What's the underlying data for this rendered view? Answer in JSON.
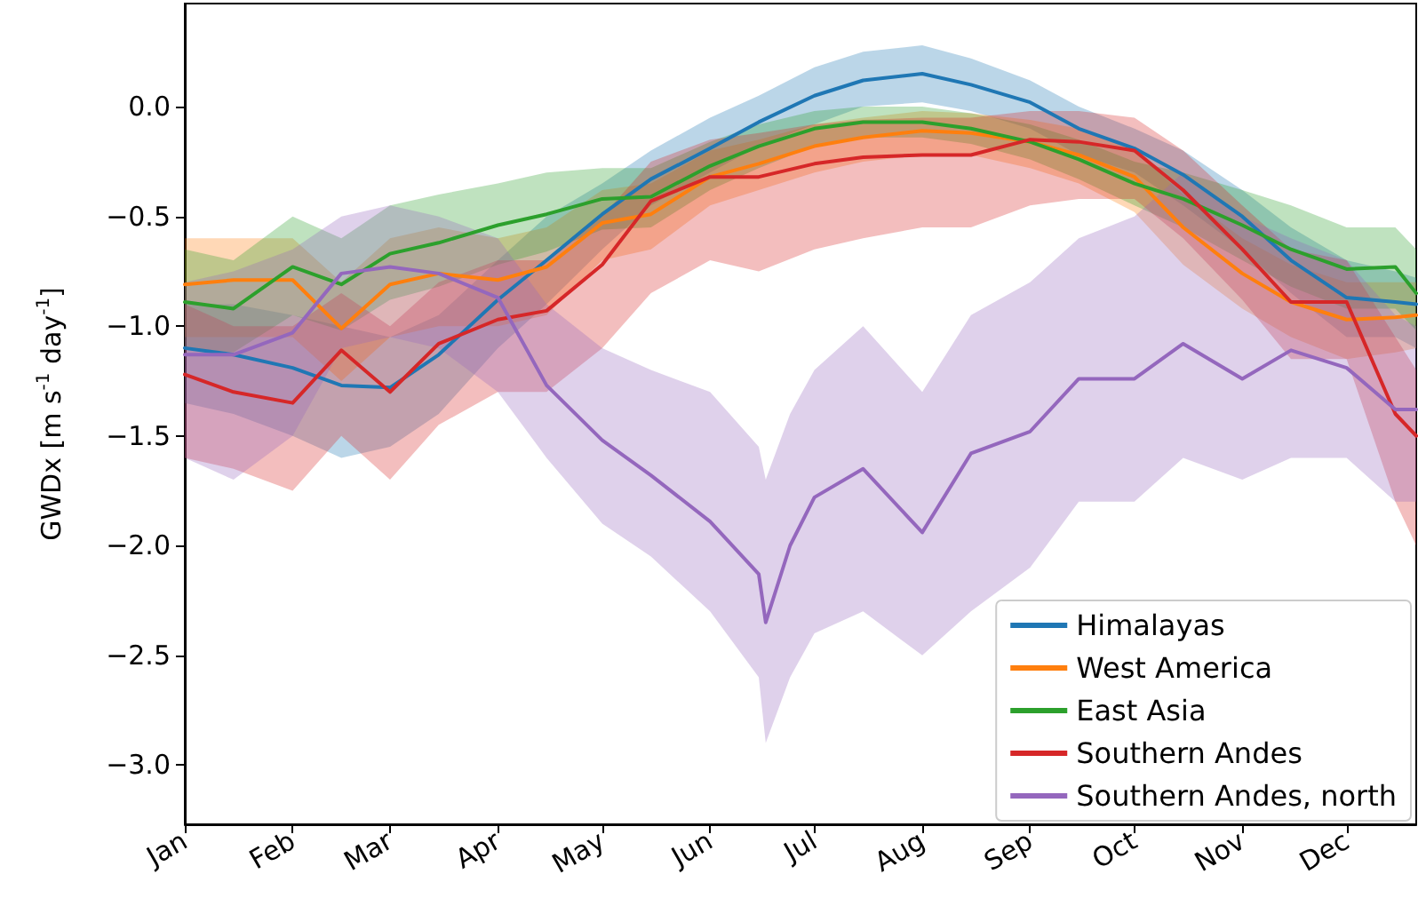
{
  "chart_data": {
    "type": "line",
    "ylabel": "GWDx [m s$^{-1}$ day$^{-1}$]",
    "x": [
      "--01-01",
      "--01-15",
      "--02-01",
      "--02-15",
      "--03-01",
      "--03-15",
      "--04-01",
      "--04-15",
      "--05-01",
      "--05-15",
      "--06-01",
      "--06-15",
      "--07-01",
      "--07-15",
      "--08-01",
      "--08-15",
      "--09-01",
      "--09-15",
      "--10-01",
      "--10-15",
      "--11-01",
      "--11-15",
      "--12-01",
      "--12-15",
      "--12-21"
    ],
    "xlim": [
      "--01-01",
      "--12-21"
    ],
    "xticks": [
      {
        "value": "--01-01",
        "label": "Jan"
      },
      {
        "value": "--02-01",
        "label": "Feb"
      },
      {
        "value": "--03-01",
        "label": "Mar"
      },
      {
        "value": "--04-01",
        "label": "Apr"
      },
      {
        "value": "--05-01",
        "label": "May"
      },
      {
        "value": "--06-01",
        "label": "Jun"
      },
      {
        "value": "--07-01",
        "label": "Jul"
      },
      {
        "value": "--08-01",
        "label": "Aug"
      },
      {
        "value": "--09-01",
        "label": "Sep"
      },
      {
        "value": "--10-01",
        "label": "Oct"
      },
      {
        "value": "--11-01",
        "label": "Nov"
      },
      {
        "value": "--12-01",
        "label": "Dec"
      }
    ],
    "ylim": [
      -3.27,
      0.47
    ],
    "yticks": [
      {
        "value": 0,
        "label": "0.0"
      },
      {
        "value": -0.5,
        "label": "−0.5"
      },
      {
        "value": -1,
        "label": "−1.0"
      },
      {
        "value": -1.5,
        "label": "−1.5"
      },
      {
        "value": -2,
        "label": "−2.0"
      },
      {
        "value": -2.5,
        "label": "−2.5"
      },
      {
        "value": -3,
        "label": "−3.0"
      }
    ],
    "grid": false,
    "legend": "bottom right",
    "marker": "none",
    "line_style": "solid",
    "series": [
      {
        "name": "Himalayas",
        "color": "#1f77b4",
        "values": [
          -1.1,
          -1.13,
          -1.19,
          -1.27,
          -1.28,
          -1.13,
          -0.88,
          -0.7,
          -0.49,
          -0.33,
          -0.19,
          -0.07,
          0.05,
          0.12,
          0.15,
          0.1,
          0.02,
          -0.1,
          -0.19,
          -0.31,
          -0.5,
          -0.7,
          -0.87,
          -0.89,
          -0.9
        ],
        "upper": [
          -0.9,
          -0.9,
          -0.95,
          -1.0,
          -1.05,
          -0.95,
          -0.7,
          -0.5,
          -0.35,
          -0.2,
          -0.05,
          0.05,
          0.18,
          0.25,
          0.28,
          0.22,
          0.12,
          0.0,
          -0.1,
          -0.2,
          -0.38,
          -0.55,
          -0.7,
          -0.75,
          -0.78
        ],
        "lower": [
          -1.35,
          -1.4,
          -1.5,
          -1.6,
          -1.55,
          -1.4,
          -1.1,
          -0.9,
          -0.65,
          -0.45,
          -0.3,
          -0.18,
          -0.08,
          0.0,
          0.02,
          -0.02,
          -0.1,
          -0.22,
          -0.3,
          -0.45,
          -0.65,
          -0.85,
          -1.05,
          -1.05,
          -1.1
        ]
      },
      {
        "name": "West America",
        "color": "#ff7f0e",
        "values": [
          -0.81,
          -0.79,
          -0.79,
          -1.01,
          -0.81,
          -0.76,
          -0.79,
          -0.73,
          -0.53,
          -0.49,
          -0.32,
          -0.26,
          -0.18,
          -0.14,
          -0.11,
          -0.12,
          -0.16,
          -0.22,
          -0.32,
          -0.55,
          -0.76,
          -0.89,
          -0.97,
          -0.96,
          -0.95
        ],
        "upper": [
          -0.6,
          -0.6,
          -0.6,
          -0.8,
          -0.6,
          -0.55,
          -0.6,
          -0.55,
          -0.38,
          -0.35,
          -0.2,
          -0.15,
          -0.08,
          -0.05,
          -0.02,
          -0.03,
          -0.06,
          -0.1,
          -0.2,
          -0.4,
          -0.6,
          -0.72,
          -0.8,
          -0.8,
          -0.8
        ],
        "lower": [
          -1.05,
          -1.05,
          -1.05,
          -1.25,
          -1.05,
          -1.0,
          -1.0,
          -0.95,
          -0.7,
          -0.65,
          -0.45,
          -0.38,
          -0.3,
          -0.25,
          -0.22,
          -0.22,
          -0.28,
          -0.35,
          -0.48,
          -0.72,
          -0.92,
          -1.05,
          -1.15,
          -1.12,
          -1.1
        ]
      },
      {
        "name": "East Asia",
        "color": "#2ca02c",
        "values": [
          -0.89,
          -0.92,
          -0.73,
          -0.81,
          -0.67,
          -0.62,
          -0.54,
          -0.49,
          -0.42,
          -0.41,
          -0.27,
          -0.18,
          -0.1,
          -0.07,
          -0.07,
          -0.1,
          -0.16,
          -0.24,
          -0.35,
          -0.42,
          -0.54,
          -0.65,
          -0.74,
          -0.73,
          -0.85
        ],
        "upper": [
          -0.65,
          -0.7,
          -0.5,
          -0.6,
          -0.45,
          -0.4,
          -0.35,
          -0.3,
          -0.28,
          -0.28,
          -0.16,
          -0.08,
          -0.02,
          0.0,
          0.0,
          -0.03,
          -0.08,
          -0.15,
          -0.25,
          -0.3,
          -0.38,
          -0.45,
          -0.55,
          -0.55,
          -0.65
        ],
        "lower": [
          -1.1,
          -1.12,
          -0.95,
          -1.02,
          -0.88,
          -0.82,
          -0.72,
          -0.66,
          -0.56,
          -0.55,
          -0.38,
          -0.28,
          -0.18,
          -0.14,
          -0.14,
          -0.17,
          -0.24,
          -0.33,
          -0.45,
          -0.55,
          -0.7,
          -0.82,
          -0.92,
          -0.92,
          -1.02
        ]
      },
      {
        "name": "Southern Andes",
        "color": "#d62728",
        "values": [
          -1.22,
          -1.3,
          -1.35,
          -1.11,
          -1.3,
          -1.08,
          -0.97,
          -0.93,
          -0.72,
          -0.43,
          -0.32,
          -0.32,
          -0.26,
          -0.23,
          -0.22,
          -0.22,
          -0.15,
          -0.16,
          -0.2,
          -0.38,
          -0.65,
          -0.89,
          -0.89,
          -1.4,
          -1.5
        ],
        "upper": [
          -0.9,
          -1.0,
          -1.0,
          -0.85,
          -1.0,
          -0.8,
          -0.7,
          -0.7,
          -0.5,
          -0.25,
          -0.15,
          -0.12,
          -0.08,
          -0.06,
          -0.05,
          -0.05,
          -0.02,
          -0.02,
          -0.05,
          -0.2,
          -0.45,
          -0.65,
          -0.7,
          -1.05,
          -1.2
        ],
        "lower": [
          -1.6,
          -1.65,
          -1.75,
          -1.5,
          -1.7,
          -1.45,
          -1.3,
          -1.3,
          -1.1,
          -0.85,
          -0.7,
          -0.75,
          -0.65,
          -0.6,
          -0.55,
          -0.55,
          -0.45,
          -0.42,
          -0.42,
          -0.6,
          -0.88,
          -1.15,
          -1.15,
          -1.8,
          -2.0
        ]
      },
      {
        "name": "Southern Andes, north",
        "color": "#9467bd",
        "x": [
          "--01-01",
          "--01-15",
          "--02-01",
          "--02-15",
          "--03-01",
          "--03-15",
          "--04-01",
          "--04-15",
          "--05-01",
          "--05-15",
          "--06-01",
          "--06-15",
          "--06-17",
          "--06-24",
          "--07-01",
          "--07-15",
          "--08-01",
          "--08-15",
          "--09-01",
          "--09-15",
          "--10-01",
          "--10-15",
          "--11-01",
          "--11-15",
          "--12-01",
          "--12-15",
          "--12-21"
        ],
        "values": [
          -1.13,
          -1.13,
          -1.03,
          -0.76,
          -0.73,
          -0.76,
          -0.87,
          -1.27,
          -1.52,
          -1.68,
          -1.89,
          -2.13,
          -2.35,
          -2.0,
          -1.78,
          -1.65,
          -1.94,
          -1.58,
          -1.48,
          -1.24,
          -1.24,
          -1.08,
          -1.24,
          -1.11,
          -1.19,
          -1.38,
          -1.38
        ],
        "upper": [
          -0.8,
          -0.75,
          -0.65,
          -0.5,
          -0.45,
          -0.5,
          -0.6,
          -0.9,
          -1.1,
          -1.2,
          -1.3,
          -1.55,
          -1.7,
          -1.4,
          -1.2,
          -1.0,
          -1.3,
          -0.95,
          -0.8,
          -0.6,
          -0.5,
          -0.3,
          -0.5,
          -0.6,
          -0.7,
          -0.95,
          -1.0
        ],
        "lower": [
          -1.6,
          -1.7,
          -1.5,
          -1.1,
          -1.05,
          -1.1,
          -1.3,
          -1.6,
          -1.9,
          -2.05,
          -2.3,
          -2.6,
          -2.9,
          -2.6,
          -2.4,
          -2.3,
          -2.5,
          -2.3,
          -2.1,
          -1.8,
          -1.8,
          -1.6,
          -1.7,
          -1.6,
          -1.6,
          -1.8,
          -1.8
        ]
      }
    ]
  }
}
